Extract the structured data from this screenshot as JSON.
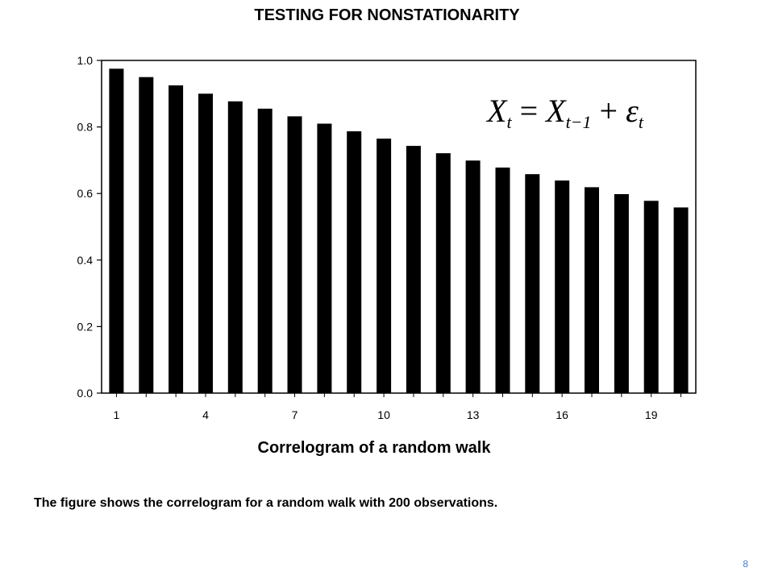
{
  "slide": {
    "title": "TESTING FOR NONSTATIONARITY",
    "caption": "Correlogram of a random walk",
    "description": "The figure shows the correlogram for a random walk with 200 observations.",
    "page_number": "8"
  },
  "formula": {
    "lhs": "X",
    "lhs_sub": "t",
    "equals": "=",
    "term": "X",
    "term_sub": "t−1",
    "plus": "+",
    "error": "ε",
    "error_sub": "t"
  },
  "chart_data": {
    "type": "bar",
    "title": "",
    "xlabel": "",
    "ylabel": "",
    "categories": [
      1,
      2,
      3,
      4,
      5,
      6,
      7,
      8,
      9,
      10,
      11,
      12,
      13,
      14,
      15,
      16,
      17,
      18,
      19,
      20
    ],
    "x_tick_labels": [
      "1",
      "4",
      "7",
      "10",
      "13",
      "16",
      "19"
    ],
    "y_tick_labels": [
      "0.0",
      "0.2",
      "0.4",
      "0.6",
      "0.8",
      "1.0"
    ],
    "values": [
      0.975,
      0.95,
      0.925,
      0.9,
      0.877,
      0.855,
      0.832,
      0.81,
      0.787,
      0.765,
      0.743,
      0.721,
      0.699,
      0.678,
      0.658,
      0.639,
      0.619,
      0.598,
      0.578,
      0.558
    ],
    "ylim": [
      0,
      1.0
    ],
    "grid": false,
    "bar_color": "#000000"
  }
}
